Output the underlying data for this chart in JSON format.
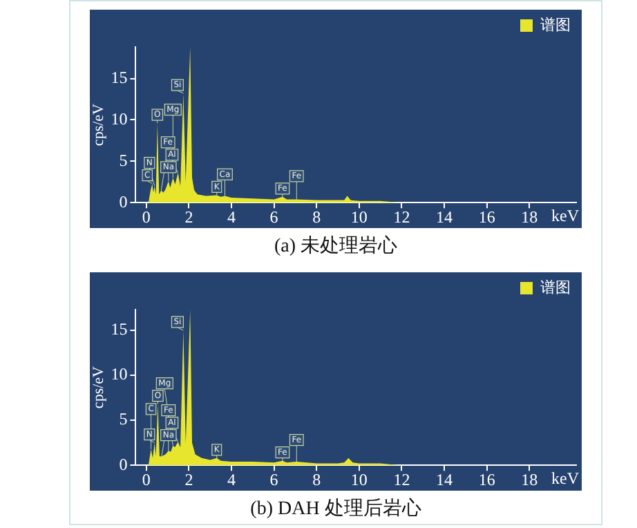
{
  "chart_data": [
    {
      "type": "area",
      "title": "(a) 未处理岩心",
      "xlabel": "keV",
      "ylabel": "cps/eV",
      "xlim": [
        -0.5,
        20.2
      ],
      "ylim": [
        0,
        18.8
      ],
      "xticks": [
        0,
        2,
        4,
        6,
        8,
        10,
        12,
        14,
        16,
        18
      ],
      "yticks": [
        0,
        5,
        10,
        15
      ],
      "grid": false,
      "legend": "top right",
      "series": [
        {
          "name": "谱图",
          "color": "#e8e62c",
          "x": [
            0.1,
            0.2,
            0.28,
            0.33,
            0.39,
            0.45,
            0.52,
            0.6,
            0.7,
            0.8,
            0.9,
            1.04,
            1.12,
            1.25,
            1.35,
            1.49,
            1.6,
            1.74,
            1.85,
            2.06,
            2.15,
            2.25,
            2.4,
            2.8,
            3.31,
            3.5,
            3.69,
            4,
            5,
            6,
            6.4,
            6.6,
            7.06,
            8,
            9,
            9.3,
            9.44,
            9.6,
            10,
            11,
            11.5,
            12,
            20
          ],
          "values": [
            0,
            1.5,
            2.3,
            1.2,
            2,
            1,
            9.6,
            1,
            1.5,
            1.2,
            1.6,
            2.6,
            1.8,
            3,
            2.2,
            3.6,
            2,
            13.2,
            2.5,
            18.8,
            3,
            1.5,
            1,
            0.8,
            0.9,
            0.7,
            0.8,
            0.6,
            0.5,
            0.4,
            0.7,
            0.4,
            0.4,
            0.3,
            0.3,
            0.3,
            0.8,
            0.3,
            0.2,
            0.2,
            0.1,
            0,
            0
          ]
        }
      ],
      "annotations": [
        {
          "text": "Si",
          "x": 1.74,
          "y": 13.2
        },
        {
          "text": "O",
          "x": 0.52,
          "y": 9.6
        },
        {
          "text": "Na",
          "x": 1.04,
          "y": 2.6
        },
        {
          "text": "Al",
          "x": 1.49,
          "y": 3.6
        },
        {
          "text": "C",
          "x": 0.28,
          "y": 2.3
        },
        {
          "text": "N",
          "x": 0.39,
          "y": 2
        },
        {
          "text": "Mg",
          "x": 1.25,
          "y": 3
        },
        {
          "text": "Fe",
          "x": 0.7,
          "y": 1.5
        },
        {
          "text": "K",
          "x": 3.31,
          "y": 0.9
        },
        {
          "text": "Ca",
          "x": 3.69,
          "y": 0.8
        },
        {
          "text": "Fe",
          "x": 6.4,
          "y": 0.7
        },
        {
          "text": "Fe",
          "x": 7.06,
          "y": 0.4
        }
      ]
    },
    {
      "type": "area",
      "title": "(b) DAH 处理后岩心",
      "xlabel": "keV",
      "ylabel": "cps/eV",
      "xlim": [
        -0.5,
        20.2
      ],
      "ylim": [
        0,
        17.3
      ],
      "xticks": [
        0,
        2,
        4,
        6,
        8,
        10,
        12,
        14,
        16,
        18
      ],
      "yticks": [
        0,
        5,
        10,
        15
      ],
      "grid": false,
      "legend": "top right",
      "series": [
        {
          "name": "谱图",
          "color": "#e8e62c",
          "x": [
            0.1,
            0.22,
            0.3,
            0.39,
            0.45,
            0.54,
            0.62,
            0.72,
            0.9,
            1.04,
            1.15,
            1.25,
            1.34,
            1.49,
            1.6,
            1.74,
            1.85,
            2.06,
            2.15,
            2.3,
            2.6,
            3,
            3.31,
            3.5,
            4,
            5,
            6,
            6.4,
            6.6,
            7.06,
            8,
            9,
            9.3,
            9.5,
            9.7,
            10,
            11,
            11.5,
            12,
            20
          ],
          "values": [
            0,
            1.8,
            0.8,
            2.5,
            1,
            6.8,
            1,
            1,
            1.2,
            1.6,
            1.5,
            2.2,
            2,
            2.6,
            2,
            15,
            2.4,
            17.3,
            2.5,
            1.2,
            0.8,
            0.6,
            0.8,
            0.5,
            0.4,
            0.4,
            0.3,
            0.5,
            0.3,
            0.4,
            0.2,
            0.2,
            0.3,
            0.8,
            0.3,
            0.2,
            0.2,
            0.1,
            0,
            0
          ]
        }
      ],
      "annotations": [
        {
          "text": "Si",
          "x": 1.74,
          "y": 15
        },
        {
          "text": "O",
          "x": 0.54,
          "y": 6.8
        },
        {
          "text": "Na",
          "x": 1.04,
          "y": 1.6
        },
        {
          "text": "N",
          "x": 0.39,
          "y": 2.5
        },
        {
          "text": "Mg",
          "x": 1.25,
          "y": 2.2
        },
        {
          "text": "C",
          "x": 0.22,
          "y": 1.8
        },
        {
          "text": "Al",
          "x": 1.49,
          "y": 2.6
        },
        {
          "text": "Fe",
          "x": 0.72,
          "y": 1
        },
        {
          "text": "K",
          "x": 3.31,
          "y": 0.8
        },
        {
          "text": "Fe",
          "x": 6.4,
          "y": 0.5
        },
        {
          "text": "Fe",
          "x": 7.06,
          "y": 0.4
        }
      ]
    }
  ]
}
